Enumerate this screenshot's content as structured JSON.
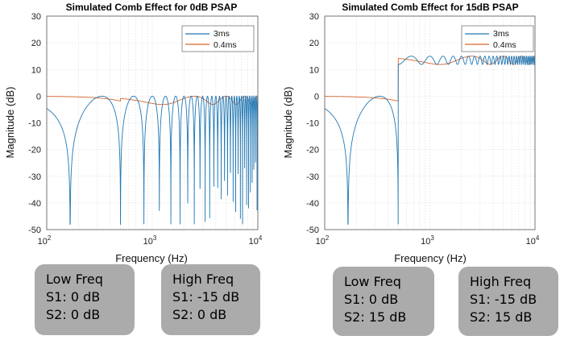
{
  "chart_data": [
    {
      "type": "line",
      "title": "Simulated Comb Effect for 0dB PSAP",
      "xlabel": "Frequency (Hz)",
      "ylabel": "Magnitude  (dB)",
      "xscale": "log",
      "xlim": [
        100,
        10000
      ],
      "ylim": [
        -50,
        30
      ],
      "yticks": [
        "30",
        "20",
        "10",
        "0",
        "-10",
        "-20",
        "-30",
        "-40",
        "-50"
      ],
      "xticks": [
        "10^2",
        "10^3",
        "10^4"
      ],
      "legend_position": "top-right",
      "series": [
        {
          "name": "3ms",
          "color": "#1f77b4",
          "model": "comb",
          "delay_ms": 3,
          "g1_db": 0,
          "g2_db": 0,
          "switch_hz": 500
        },
        {
          "name": "0.4ms",
          "color": "#d9662c",
          "model": "comb",
          "delay_ms": 0.4,
          "g1_db": 0,
          "g2_db": -15,
          "switch_hz": 500
        }
      ]
    },
    {
      "type": "line",
      "title": "Simulated Comb Effect for 15dB PSAP",
      "xlabel": "Frequency (Hz)",
      "ylabel": "Magnitude  (dB)",
      "xscale": "log",
      "xlim": [
        100,
        10000
      ],
      "ylim": [
        -50,
        30
      ],
      "yticks": [
        "30",
        "20",
        "10",
        "0",
        "-10",
        "-20",
        "-30",
        "-40",
        "-50"
      ],
      "xticks": [
        "10^2",
        "10^3",
        "10^4"
      ],
      "legend_position": "top-right",
      "series": [
        {
          "name": "3ms",
          "color": "#1f77b4",
          "model": "comb",
          "delay_ms": 3,
          "g1_db": 0,
          "g2_db": 15,
          "switch_hz": 500
        },
        {
          "name": "0.4ms",
          "color": "#d9662c",
          "model": "comb",
          "delay_ms": 0.4,
          "g1_db": 0,
          "g2_db": 15,
          "switch_hz": 500
        }
      ]
    }
  ],
  "notes": [
    {
      "title": "Low Freq",
      "s1": "S1: 0 dB",
      "s2": "S2: 0 dB"
    },
    {
      "title": "High Freq",
      "s1": "S1: -15 dB",
      "s2": "S2: 0 dB"
    },
    {
      "title": "Low Freq",
      "s1": "S1: 0 dB",
      "s2": "S2: 15 dB"
    },
    {
      "title": "High Freq",
      "s1": "S1: -15 dB",
      "s2": "S2: 15 dB"
    }
  ]
}
